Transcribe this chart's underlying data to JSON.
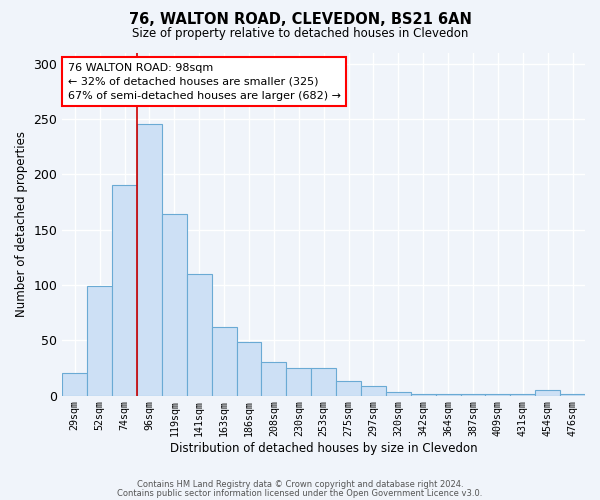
{
  "title": "76, WALTON ROAD, CLEVEDON, BS21 6AN",
  "subtitle": "Size of property relative to detached houses in Clevedon",
  "xlabel": "Distribution of detached houses by size in Clevedon",
  "ylabel": "Number of detached properties",
  "bar_labels": [
    "29sqm",
    "52sqm",
    "74sqm",
    "96sqm",
    "119sqm",
    "141sqm",
    "163sqm",
    "186sqm",
    "208sqm",
    "230sqm",
    "253sqm",
    "275sqm",
    "297sqm",
    "320sqm",
    "342sqm",
    "364sqm",
    "387sqm",
    "409sqm",
    "431sqm",
    "454sqm",
    "476sqm"
  ],
  "bar_values": [
    20,
    99,
    190,
    245,
    164,
    110,
    62,
    48,
    30,
    25,
    25,
    13,
    9,
    3,
    1,
    1,
    1,
    1,
    1,
    5,
    1
  ],
  "bar_color": "#cde0f5",
  "bar_edge_color": "#6aaad4",
  "bar_edge_width": 0.8,
  "vline_index": 3,
  "vline_color": "#cc0000",
  "vline_linewidth": 1.2,
  "ylim": [
    0,
    310
  ],
  "yticks": [
    0,
    50,
    100,
    150,
    200,
    250,
    300
  ],
  "annotation_text": "76 WALTON ROAD: 98sqm\n← 32% of detached houses are smaller (325)\n67% of semi-detached houses are larger (682) →",
  "annotation_box_color": "white",
  "annotation_box_edge_color": "red",
  "footer_line1": "Contains HM Land Registry data © Crown copyright and database right 2024.",
  "footer_line2": "Contains public sector information licensed under the Open Government Licence v3.0.",
  "figure_background_color": "#f0f4fa",
  "plot_background_color": "#f0f4fa"
}
